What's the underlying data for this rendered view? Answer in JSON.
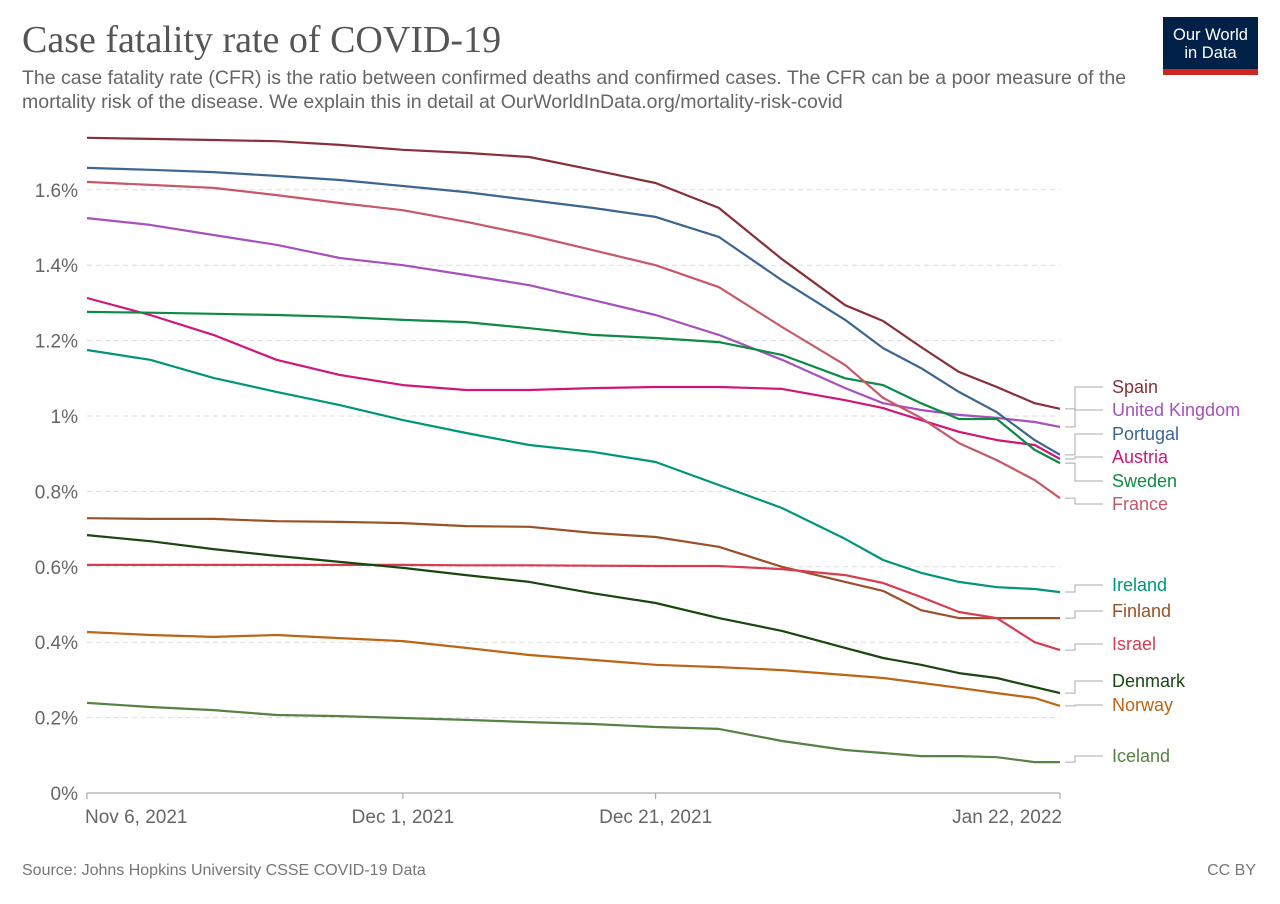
{
  "title": "Case fatality rate of COVID-19",
  "subtitle": "The case fatality rate (CFR) is the ratio between confirmed deaths and confirmed cases. The CFR can be a poor measure of the mortality risk of the disease. We explain this in detail at OurWorldInData.org/mortality-risk-covid",
  "logo": {
    "line1": "Our World",
    "line2": "in Data",
    "bg": "#002147",
    "accent": "#ce261e"
  },
  "source": "Source: Johns Hopkins University CSSE COVID-19 Data",
  "license": "CC BY",
  "chart_data": {
    "type": "line",
    "xlim": [
      "2021-11-06",
      "2022-01-22"
    ],
    "ylim": [
      0,
      1.7
    ],
    "grid": "horizontal dashed",
    "legend": "right (labels at line ends)",
    "x_ticks": [
      {
        "date": "2021-11-06",
        "label": "Nov 6, 2021"
      },
      {
        "date": "2021-12-01",
        "label": "Dec 1, 2021"
      },
      {
        "date": "2021-12-21",
        "label": "Dec 21, 2021"
      },
      {
        "date": "2022-01-22",
        "label": "Jan 22, 2022"
      }
    ],
    "y_ticks": [
      {
        "value": 0,
        "label": "0%"
      },
      {
        "value": 0.2,
        "label": "0.2%"
      },
      {
        "value": 0.4,
        "label": "0.4%"
      },
      {
        "value": 0.6,
        "label": "0.6%"
      },
      {
        "value": 0.8,
        "label": "0.8%"
      },
      {
        "value": 1.0,
        "label": "1%"
      },
      {
        "value": 1.2,
        "label": "1.2%"
      },
      {
        "value": 1.4,
        "label": "1.4%"
      },
      {
        "value": 1.6,
        "label": "1.6%"
      }
    ],
    "dates": [
      "2021-11-06",
      "2021-11-11",
      "2021-11-16",
      "2021-11-21",
      "2021-11-26",
      "2021-12-01",
      "2021-12-06",
      "2021-12-11",
      "2021-12-16",
      "2021-12-21",
      "2021-12-26",
      "2021-12-31",
      "2022-01-05",
      "2022-01-08",
      "2022-01-11",
      "2022-01-14",
      "2022-01-17",
      "2022-01-20",
      "2022-01-22"
    ],
    "series": [
      {
        "name": "Spain",
        "color": "#883039",
        "values": [
          1.738,
          1.735,
          1.732,
          1.729,
          1.719,
          1.706,
          1.698,
          1.687,
          1.653,
          1.618,
          1.552,
          1.416,
          1.294,
          1.252,
          1.183,
          1.117,
          1.077,
          1.034,
          1.019
        ]
      },
      {
        "name": "United Kingdom",
        "color": "#a652ba",
        "values": [
          1.525,
          1.507,
          1.48,
          1.454,
          1.419,
          1.4,
          1.374,
          1.347,
          1.308,
          1.268,
          1.215,
          1.149,
          1.074,
          1.034,
          1.016,
          1.003,
          0.995,
          0.984,
          0.971
        ]
      },
      {
        "name": "Portugal",
        "color": "#3c6690",
        "values": [
          1.658,
          1.653,
          1.647,
          1.637,
          1.626,
          1.61,
          1.594,
          1.573,
          1.552,
          1.528,
          1.475,
          1.36,
          1.255,
          1.18,
          1.127,
          1.064,
          1.01,
          0.936,
          0.897
        ]
      },
      {
        "name": "Austria",
        "color": "#d0167a",
        "values": [
          1.313,
          1.268,
          1.215,
          1.149,
          1.109,
          1.082,
          1.069,
          1.069,
          1.074,
          1.077,
          1.077,
          1.072,
          1.042,
          1.021,
          0.989,
          0.958,
          0.936,
          0.923,
          0.886
        ]
      },
      {
        "name": "Sweden",
        "color": "#0e8a46",
        "values": [
          1.276,
          1.274,
          1.271,
          1.268,
          1.263,
          1.255,
          1.249,
          1.233,
          1.215,
          1.207,
          1.196,
          1.162,
          1.1,
          1.082,
          1.034,
          0.992,
          0.992,
          0.91,
          0.875
        ]
      },
      {
        "name": "France",
        "color": "#c75868",
        "values": [
          1.621,
          1.613,
          1.605,
          1.586,
          1.565,
          1.546,
          1.515,
          1.48,
          1.44,
          1.4,
          1.342,
          1.236,
          1.135,
          1.048,
          0.995,
          0.928,
          0.883,
          0.83,
          0.782
        ]
      },
      {
        "name": "Ireland",
        "color": "#00967a",
        "values": [
          1.175,
          1.149,
          1.101,
          1.064,
          1.029,
          0.989,
          0.955,
          0.923,
          0.905,
          0.878,
          0.817,
          0.756,
          0.674,
          0.618,
          0.584,
          0.56,
          0.546,
          0.541,
          0.533
        ]
      },
      {
        "name": "Finland",
        "color": "#9a5129",
        "values": [
          0.729,
          0.727,
          0.727,
          0.721,
          0.719,
          0.716,
          0.708,
          0.706,
          0.69,
          0.679,
          0.653,
          0.6,
          0.56,
          0.536,
          0.485,
          0.464,
          0.464,
          0.464,
          0.464
        ]
      },
      {
        "name": "Israel",
        "color": "#d73c50",
        "values": [
          0.605,
          0.605,
          0.605,
          0.605,
          0.605,
          0.605,
          0.604,
          0.604,
          0.603,
          0.602,
          0.602,
          0.594,
          0.578,
          0.557,
          0.52,
          0.48,
          0.464,
          0.4,
          0.379
        ]
      },
      {
        "name": "Denmark",
        "color": "#18470f",
        "values": [
          0.684,
          0.668,
          0.647,
          0.629,
          0.613,
          0.597,
          0.578,
          0.56,
          0.53,
          0.504,
          0.464,
          0.43,
          0.385,
          0.358,
          0.34,
          0.318,
          0.305,
          0.281,
          0.265
        ]
      },
      {
        "name": "Norway",
        "color": "#bc6515",
        "values": [
          0.427,
          0.419,
          0.414,
          0.419,
          0.411,
          0.403,
          0.385,
          0.366,
          0.353,
          0.34,
          0.334,
          0.326,
          0.313,
          0.305,
          0.292,
          0.279,
          0.265,
          0.252,
          0.231
        ]
      },
      {
        "name": "Iceland",
        "color": "#578145",
        "values": [
          0.239,
          0.228,
          0.22,
          0.207,
          0.204,
          0.199,
          0.194,
          0.188,
          0.183,
          0.175,
          0.17,
          0.138,
          0.114,
          0.106,
          0.098,
          0.098,
          0.095,
          0.082,
          0.082
        ]
      }
    ]
  }
}
